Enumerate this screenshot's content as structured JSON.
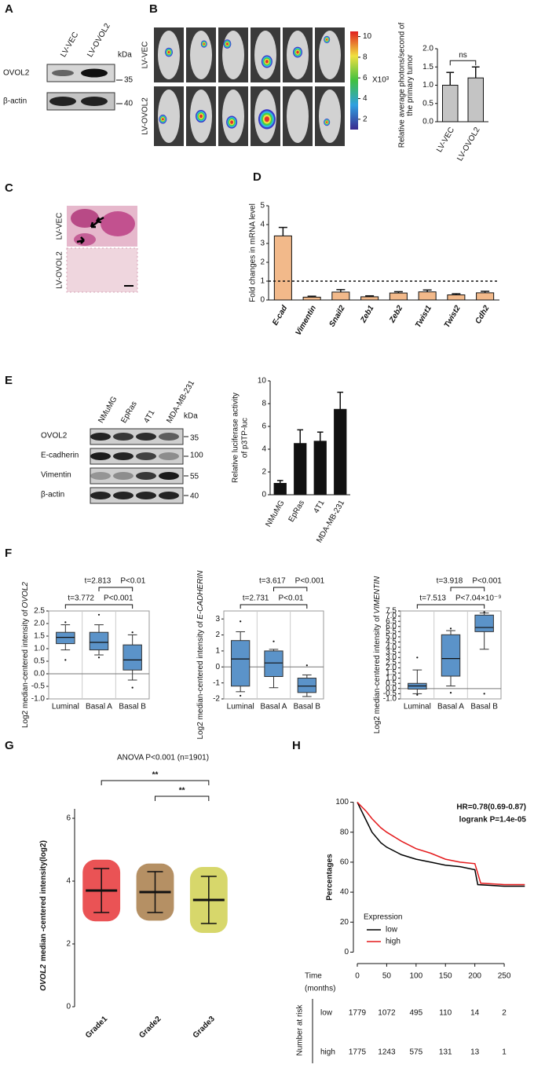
{
  "panel_labels": [
    "A",
    "B",
    "C",
    "D",
    "E",
    "F",
    "G",
    "H"
  ],
  "blot_a": {
    "lanes": [
      "LV-VEC",
      "LV-OVOL2"
    ],
    "unit": "kDa",
    "rows": [
      {
        "name": "OVOL2",
        "marker": "35"
      },
      {
        "name": "β-actin",
        "marker": "40"
      }
    ]
  },
  "imaging_b": {
    "rows": [
      "LV-VEC",
      "LV-OVOL2"
    ],
    "colorbar": {
      "lim": [
        1,
        10.5
      ],
      "ticks": [
        2,
        4,
        6,
        8,
        10
      ],
      "unit": "X10³"
    }
  },
  "histology_c": {
    "rows": [
      "LV-VEC",
      "LV-OVOL2"
    ]
  },
  "blot_e": {
    "lanes": [
      "NMuMG",
      "EpRas",
      "4T1",
      "MDA-MB-231"
    ],
    "unit": "kDa",
    "rows": [
      {
        "name": "OVOL2",
        "marker": "35"
      },
      {
        "name": "E-cadherin",
        "marker": "100"
      },
      {
        "name": "Vimentin",
        "marker": "55"
      },
      {
        "name": "β-actin",
        "marker": "40"
      }
    ]
  },
  "chart_data": [
    {
      "type": "bar",
      "ylabel": [
        "Relative average photons/second of",
        "the primary tumor"
      ],
      "categories": [
        "LV-VEC",
        "LV-OVOL2"
      ],
      "values": [
        1.0,
        1.2
      ],
      "errors": [
        0.35,
        0.3
      ],
      "color": "#c4c4c4",
      "ylim": [
        0,
        2.0
      ],
      "yticks": [
        {
          "value": 0,
          "label": "0.0"
        },
        0.5,
        {
          "value": 1,
          "label": "1.0"
        },
        1.5,
        {
          "value": 2,
          "label": "2.0"
        }
      ],
      "annotation": "ns"
    },
    {
      "type": "bar",
      "ylabel": [
        "Fold changes in mRNA level"
      ],
      "categories": [
        "E-cad",
        "Vimentin",
        "Snail2",
        "Zeb1",
        "Zeb2",
        "Twist1",
        "Twist2",
        "Cdh2"
      ],
      "values": [
        3.4,
        0.15,
        0.42,
        0.17,
        0.37,
        0.43,
        0.27,
        0.38
      ],
      "errors": [
        0.45,
        0.05,
        0.13,
        0.05,
        0.07,
        0.1,
        0.06,
        0.08
      ],
      "color": "#f2b98a",
      "ylim": [
        0,
        5
      ],
      "yticks": [
        0,
        1,
        2,
        3,
        4,
        5
      ],
      "refline": 1
    },
    {
      "type": "bar",
      "ylabel": [
        "Relative luciferase activity",
        "of p3TP-luc"
      ],
      "categories": [
        "NMuMG",
        "EpRas",
        "4T1",
        "MDA-MB-231"
      ],
      "values": [
        1.0,
        4.5,
        4.7,
        7.5
      ],
      "errors": [
        0.25,
        1.2,
        0.8,
        1.5
      ],
      "color": "#111111",
      "ylim": [
        0,
        10
      ],
      "yticks": [
        0,
        2,
        4,
        6,
        8,
        10
      ]
    },
    {
      "type": "box",
      "ylabel": "Log2 median-centered intensity of",
      "gene": "OVOL2",
      "categories": [
        "Luminal",
        "Basal A",
        "Basal B"
      ],
      "color": "#5b93c9",
      "ylim": [
        -1.0,
        2.5
      ],
      "yticks": [
        {
          "value": -1,
          "label": "-1.0"
        },
        -0.5,
        {
          "value": 0,
          "label": "0.0"
        },
        0.5,
        {
          "value": 1,
          "label": "1.0"
        },
        1.5,
        {
          "value": 2,
          "label": "2.0"
        },
        2.5
      ],
      "boxes": [
        {
          "q1": 1.2,
          "median": 1.45,
          "q3": 1.65,
          "whislo": 0.95,
          "whishi": 1.95,
          "fliers": [
            2.05,
            0.55
          ]
        },
        {
          "q1": 0.95,
          "median": 1.25,
          "q3": 1.65,
          "whislo": 0.75,
          "whishi": 1.95,
          "fliers": [
            2.35,
            0.65
          ]
        },
        {
          "q1": 0.15,
          "median": 0.55,
          "q3": 1.15,
          "whislo": -0.25,
          "whishi": 1.55,
          "fliers": [
            1.65,
            -0.55
          ]
        }
      ],
      "comparisons": [
        {
          "t": "t=2.813",
          "p": "P<0.01"
        },
        {
          "t": "t=3.772",
          "p": "P<0.001"
        }
      ]
    },
    {
      "type": "box",
      "ylabel": "Log2 median-centered intensity of",
      "gene": "E-CADHERIN",
      "categories": [
        "Luminal",
        "Basal A",
        "Basal B"
      ],
      "color": "#5b93c9",
      "ylim": [
        -2,
        3.5
      ],
      "yticks": [
        -2,
        -1,
        0,
        1,
        2,
        3
      ],
      "boxes": [
        {
          "q1": -1.2,
          "median": 0.5,
          "q3": 1.65,
          "whislo": -1.55,
          "whishi": 2.2,
          "fliers": [
            2.85,
            -1.8
          ]
        },
        {
          "q1": -0.6,
          "median": 0.25,
          "q3": 1.0,
          "whislo": -1.3,
          "whishi": 1.1,
          "fliers": [
            1.6
          ]
        },
        {
          "q1": -1.6,
          "median": -1.2,
          "q3": -0.7,
          "whislo": -1.85,
          "whishi": -0.5,
          "fliers": [
            0.1
          ]
        }
      ],
      "comparisons": [
        {
          "t": "t=3.617",
          "p": "P<0.001"
        },
        {
          "t": "t=2.731",
          "p": "P<0.01"
        }
      ]
    },
    {
      "type": "box",
      "ylabel": "Log2 median-centered intensity of",
      "gene": "VIMENTIN",
      "categories": [
        "Luminal",
        "Basal A",
        "Basal B"
      ],
      "color": "#5b93c9",
      "ylim": [
        -1.0,
        7.5
      ],
      "yticks": [
        {
          "value": -1,
          "label": "-1.0"
        },
        -0.5,
        {
          "value": 0,
          "label": "0.0"
        },
        0.5,
        {
          "value": 1,
          "label": "1.0"
        },
        1.5,
        {
          "value": 2,
          "label": "2.0"
        },
        2.5,
        {
          "value": 3,
          "label": "3.0"
        },
        3.5,
        {
          "value": 4,
          "label": "4.0"
        },
        4.5,
        {
          "value": 5,
          "label": "5.0"
        },
        5.5,
        {
          "value": 6,
          "label": "6.0"
        },
        6.5,
        {
          "value": 7,
          "label": "7.0"
        },
        7.5
      ],
      "boxes": [
        {
          "q1": -0.05,
          "median": 0.25,
          "q3": 0.5,
          "whislo": -0.5,
          "whishi": 1.8,
          "fliers": [
            3.0,
            -0.6
          ]
        },
        {
          "q1": 1.2,
          "median": 2.9,
          "q3": 5.2,
          "whislo": 0.25,
          "whishi": 5.6,
          "fliers": [
            5.8,
            -0.4
          ]
        },
        {
          "q1": 5.5,
          "median": 5.9,
          "q3": 7.1,
          "whislo": 3.8,
          "whishi": 7.3,
          "fliers": [
            -0.5,
            7.4
          ]
        }
      ],
      "comparisons": [
        {
          "t": "t=3.918",
          "p": "P<0.001"
        },
        {
          "t": "t=7.513",
          "p": "P<7.04×10⁻⁹"
        }
      ]
    },
    {
      "type": "dot",
      "title": "ANOVA  P<0.001 (n=1901)",
      "ylabel_gene": "OVOL2",
      "ylabel": "median -centered intensity(log2)",
      "categories": [
        "Grade1",
        "Grade2",
        "Grade3"
      ],
      "colors": [
        "#e31a1c",
        "#9c6b30",
        "#c9c93a"
      ],
      "means": [
        3.7,
        3.65,
        3.4
      ],
      "sds": [
        0.7,
        0.65,
        0.75
      ],
      "ylim": [
        0,
        6.3
      ],
      "yticks": [
        0,
        2,
        4,
        6
      ],
      "annotations": [
        "**",
        "**"
      ]
    },
    {
      "type": "line",
      "ylabel": "Percentages",
      "xlabel": [
        "Time",
        "(months)"
      ],
      "annotations": [
        "HR=0.78(0.69-0.87)",
        "logrank P=1.4e-05"
      ],
      "legend_title": "Expression",
      "xlim": [
        0,
        290
      ],
      "xticks": [
        0,
        50,
        100,
        150,
        200,
        250
      ],
      "ylim": [
        -5,
        105
      ],
      "yticks": [
        0,
        20,
        40,
        60,
        80,
        100
      ],
      "series": [
        {
          "name": "low",
          "color": "#000000",
          "x": [
            0,
            5,
            15,
            25,
            40,
            50,
            75,
            100,
            125,
            150,
            175,
            200,
            205,
            250,
            285
          ],
          "values": [
            100,
            96,
            88,
            80,
            73,
            70,
            65,
            62,
            60,
            58,
            57,
            55,
            45,
            44,
            44
          ]
        },
        {
          "name": "high",
          "color": "#e41a1c",
          "x": [
            0,
            5,
            15,
            25,
            40,
            50,
            75,
            100,
            125,
            150,
            175,
            200,
            210,
            250,
            285
          ],
          "values": [
            100,
            98,
            94,
            89,
            83,
            80,
            74,
            69,
            66,
            62,
            60,
            59,
            46,
            45,
            45
          ]
        }
      ],
      "risk_table": {
        "label": "Number at risk",
        "rows": [
          {
            "name": "low",
            "values": [
              1779,
              1072,
              495,
              110,
              14,
              2
            ]
          },
          {
            "name": "high",
            "values": [
              1775,
              1243,
              575,
              131,
              13,
              1
            ]
          }
        ]
      }
    }
  ]
}
